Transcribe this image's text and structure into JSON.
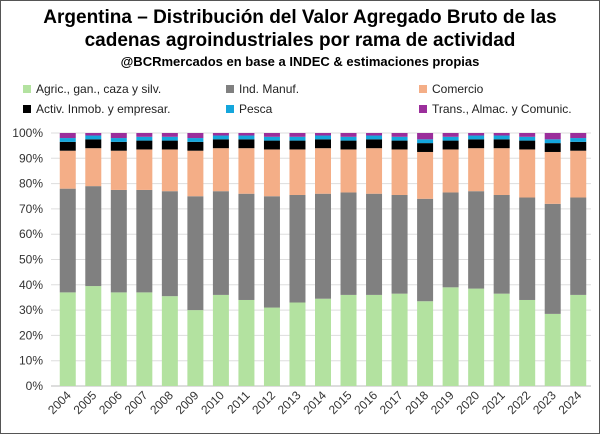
{
  "chart_data": {
    "type": "bar",
    "stacked": true,
    "title": "Argentina – Distribución del Valor Agregado Bruto de las cadenas agroindustriales por rama de actividad",
    "title_lines": [
      "Argentina – Distribución del Valor Agregado Bruto de las",
      "cadenas agroindustriales por rama de actividad"
    ],
    "subtitle": "@BCRmercados en base a INDEC & estimaciones propias",
    "categories": [
      "2004",
      "2005",
      "2006",
      "2007",
      "2008",
      "2009",
      "2010",
      "2011",
      "2012",
      "2013",
      "2014",
      "2015",
      "2016",
      "2017",
      "2018",
      "2019",
      "2020",
      "2021",
      "2022",
      "2023",
      "2024"
    ],
    "ylim": [
      0,
      100
    ],
    "yticks": [
      "0%",
      "10%",
      "20%",
      "30%",
      "40%",
      "50%",
      "60%",
      "70%",
      "80%",
      "90%",
      "100%"
    ],
    "grid": true,
    "legend_position": "top",
    "series": [
      {
        "name": "Agric., gan., caza y silv.",
        "color": "#b3e2a0",
        "values": [
          37,
          39.5,
          37,
          37,
          35.5,
          30,
          36,
          34,
          31,
          33,
          34.5,
          36,
          36,
          36.5,
          33.5,
          39,
          38.5,
          36.5,
          34,
          28.5,
          36
        ]
      },
      {
        "name": "Ind. Manuf.",
        "color": "#808080",
        "values": [
          41,
          39.5,
          40.5,
          40.5,
          41.5,
          45,
          41,
          42,
          44,
          42.5,
          41.5,
          40.5,
          40,
          39,
          40.5,
          37.5,
          38.5,
          39,
          40.5,
          43.5,
          38.5
        ]
      },
      {
        "name": "Comercio",
        "color": "#f4ae87",
        "values": [
          15,
          15,
          15.5,
          16,
          16.5,
          18,
          17,
          18,
          18.5,
          18,
          18,
          17,
          18,
          18,
          18.5,
          17,
          17,
          18.5,
          19,
          20.5,
          18.5
        ]
      },
      {
        "name": "Activ. Inmob. y empresar.",
        "color": "#000000",
        "values": [
          3.5,
          3.5,
          3.5,
          3.5,
          3.5,
          3.5,
          3.5,
          3.5,
          3.5,
          3.5,
          3.5,
          3.5,
          3.5,
          3.5,
          3.5,
          3.5,
          3.5,
          3.5,
          3.5,
          3.5,
          3.5
        ]
      },
      {
        "name": "Pesca",
        "color": "#14a6dc",
        "values": [
          1.5,
          1.5,
          1.5,
          1.5,
          1.5,
          1.5,
          1.5,
          1.5,
          1.5,
          1.5,
          1.5,
          1.5,
          1.5,
          1.5,
          1.5,
          1.5,
          1.5,
          1.5,
          1.5,
          1.5,
          1.5
        ]
      },
      {
        "name": "Trans., Almac. y Comunic.",
        "color": "#9b2e9b",
        "values": [
          2,
          1,
          2,
          1.5,
          1.5,
          2,
          1,
          1,
          1.5,
          1.5,
          1,
          1.5,
          1,
          1.5,
          2.5,
          1.5,
          1,
          1,
          1.5,
          2.5,
          2
        ]
      }
    ]
  }
}
